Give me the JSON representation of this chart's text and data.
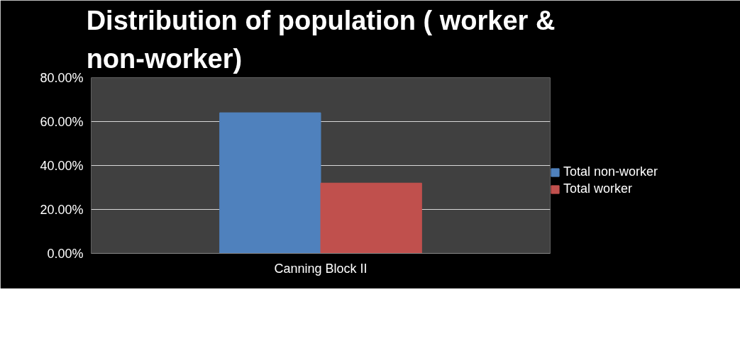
{
  "chart_data": {
    "type": "bar",
    "title": "Distribution of population ( worker & non-worker)",
    "categories": [
      "Canning Block II"
    ],
    "series": [
      {
        "name": "Total non-worker",
        "color": "#4f81bd",
        "values": [
          64
        ]
      },
      {
        "name": "Total worker",
        "color": "#c0504d",
        "values": [
          32
        ]
      }
    ],
    "ylim": [
      0,
      80
    ],
    "yticks": [
      {
        "value": 0,
        "label": "0.00%"
      },
      {
        "value": 20,
        "label": "20.00%"
      },
      {
        "value": 40,
        "label": "40.00%"
      },
      {
        "value": 60,
        "label": "60.00%"
      },
      {
        "value": 80,
        "label": "80.00%"
      }
    ],
    "grid": "y",
    "legend": "right"
  }
}
